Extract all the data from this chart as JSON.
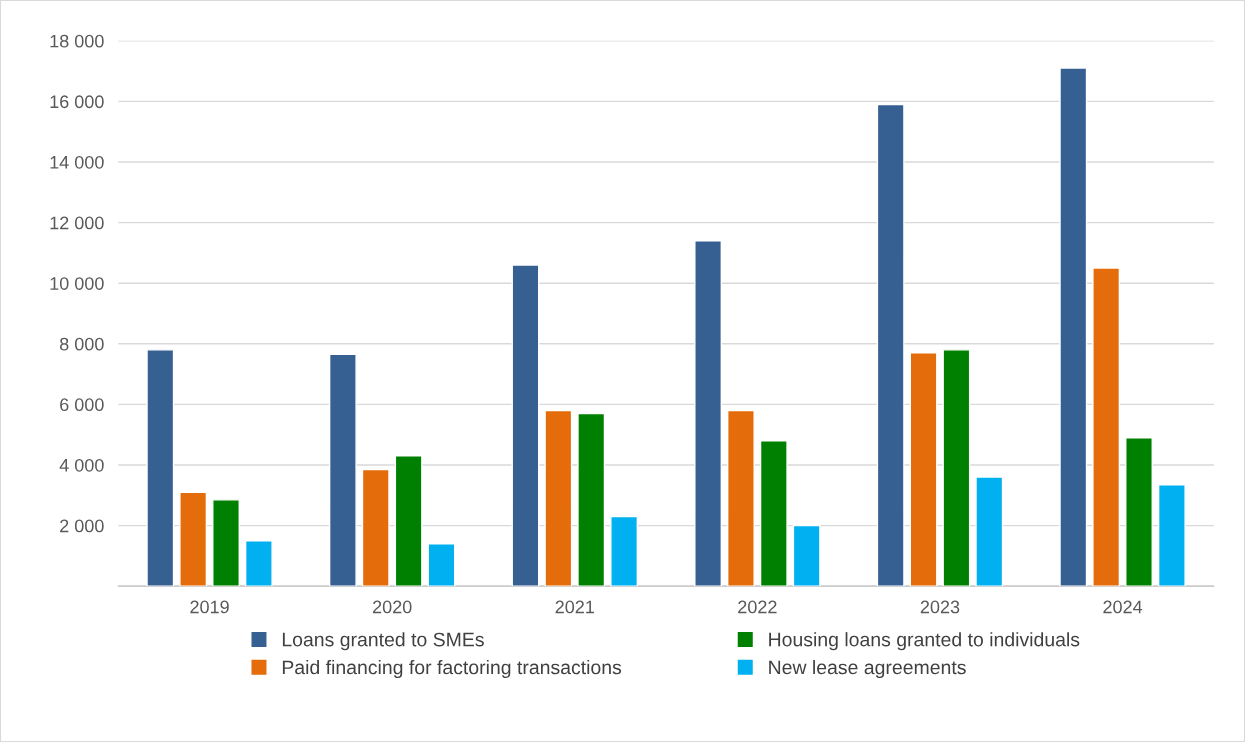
{
  "chart_data": {
    "type": "bar",
    "categories": [
      "2019",
      "2020",
      "2021",
      "2022",
      "2023",
      "2024"
    ],
    "series": [
      {
        "name": "Loans granted to SMEs",
        "color": "#376092",
        "values": [
          7800,
          7650,
          10600,
          11400,
          15900,
          17100
        ]
      },
      {
        "name": "Paid financing for factoring transactions",
        "color": "#e46c0a",
        "values": [
          3100,
          3850,
          5800,
          5800,
          7700,
          10500
        ]
      },
      {
        "name": "Housing loans granted to individuals",
        "color": "#008000",
        "values": [
          2850,
          4300,
          5700,
          4800,
          7800,
          4900
        ]
      },
      {
        "name": "New lease agreements",
        "color": "#00b0f0",
        "values": [
          1500,
          1400,
          2300,
          2000,
          3600,
          3350
        ]
      }
    ],
    "ylim": [
      0,
      18000
    ],
    "yticks": [
      {
        "value": 0,
        "label": null
      },
      {
        "value": 2000,
        "label": "2 000"
      },
      {
        "value": 4000,
        "label": "4 000"
      },
      {
        "value": 6000,
        "label": "6 000"
      },
      {
        "value": 8000,
        "label": "8 000"
      },
      {
        "value": 10000,
        "label": "10 000"
      },
      {
        "value": 12000,
        "label": "12 000"
      },
      {
        "value": 14000,
        "label": "14 000"
      },
      {
        "value": 16000,
        "label": "16 000"
      },
      {
        "value": 18000,
        "label": "18 000"
      }
    ],
    "grid": "y",
    "legend": "bottom"
  }
}
